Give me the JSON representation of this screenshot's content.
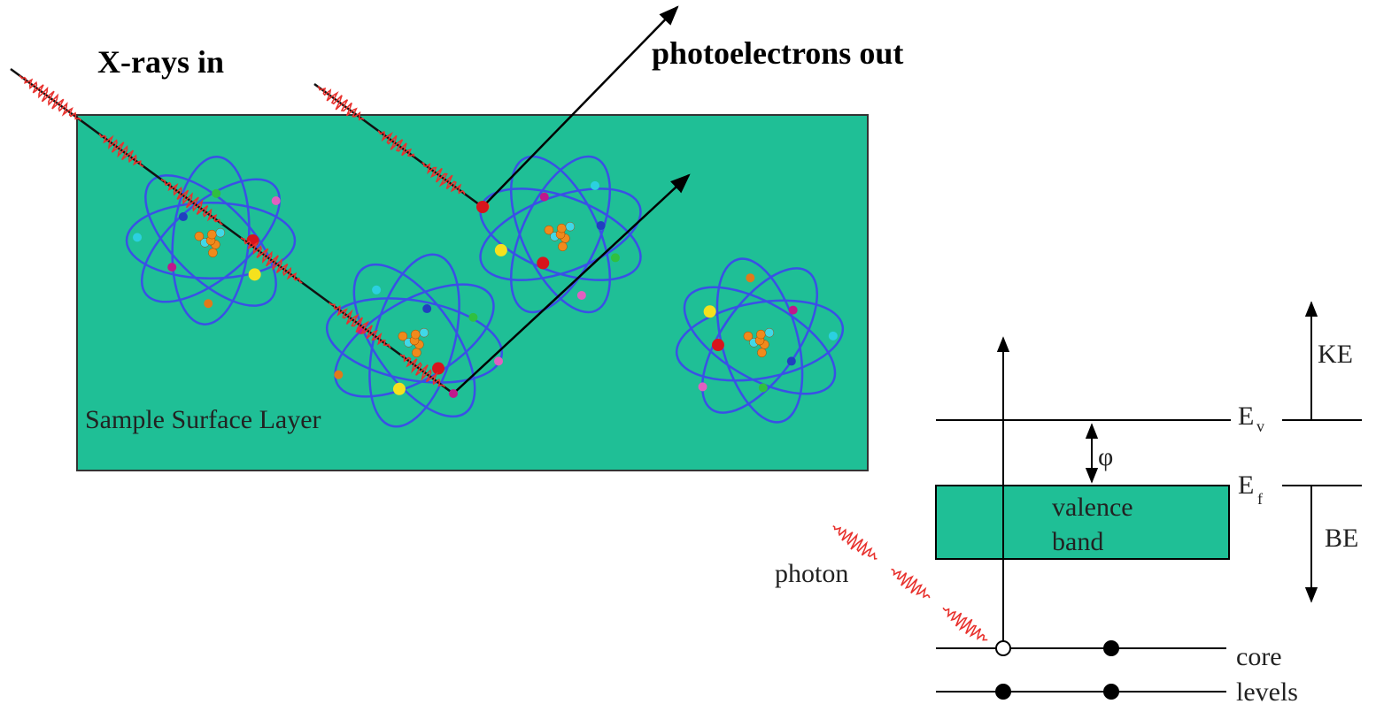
{
  "title_in": "X-rays in",
  "title_out": "photoelectrons out",
  "sample_label": "Sample Surface Layer",
  "energy_diagram": {
    "photon": "photon",
    "valence_band": [
      "valence",
      "band"
    ],
    "E_v": {
      "base": "E",
      "sub": "v"
    },
    "E_f": {
      "base": "E",
      "sub": "f"
    },
    "work_function": "φ",
    "kinetic": "KE",
    "binding": "BE",
    "core_levels": [
      "core",
      "levels"
    ]
  }
}
